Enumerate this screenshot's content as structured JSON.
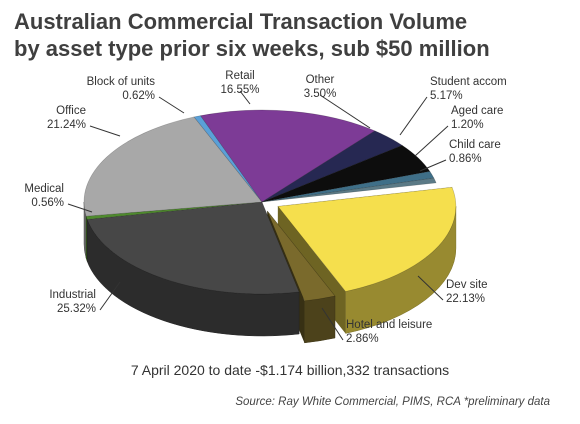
{
  "chart_data": {
    "type": "pie",
    "title": [
      "Australian Commercial Transaction Volume",
      "by asset type prior six weeks, sub $50 million"
    ],
    "subtitle": "7 April 2020 to date -$1.174 billion,332 transactions",
    "source": "Source: Ray White Commercial, PIMS, RCA *preliminary data",
    "slices": [
      {
        "name": "Dev site",
        "value": 22.13,
        "label": "22.13%",
        "color": "#f5df4d",
        "exploded": true
      },
      {
        "name": "Hotel and leisure",
        "value": 2.86,
        "label": "2.86%",
        "color": "#7a6a2c",
        "exploded": true
      },
      {
        "name": "Industrial",
        "value": 25.32,
        "label": "25.32%",
        "color": "#474747"
      },
      {
        "name": "Medical",
        "value": 0.56,
        "label": "0.56%",
        "color": "#4f8a2e"
      },
      {
        "name": "Office",
        "value": 21.24,
        "label": "21.24%",
        "color": "#a8a8a8"
      },
      {
        "name": "Block of units",
        "value": 0.62,
        "label": "0.62%",
        "color": "#5aa0d8"
      },
      {
        "name": "Retail",
        "value": 16.55,
        "label": "16.55%",
        "color": "#7d3b96"
      },
      {
        "name": "Other",
        "value": 3.5,
        "label": "3.50%",
        "color": "#262852"
      },
      {
        "name": "Student accom",
        "value": 5.17,
        "label": "5.17%",
        "color": "#0d0d0d"
      },
      {
        "name": "Aged care",
        "value": 1.2,
        "label": "1.20%",
        "color": "#3f6f88"
      },
      {
        "name": "Child care",
        "value": 0.86,
        "label": "0.86%",
        "color": "#5b7a86"
      }
    ]
  }
}
